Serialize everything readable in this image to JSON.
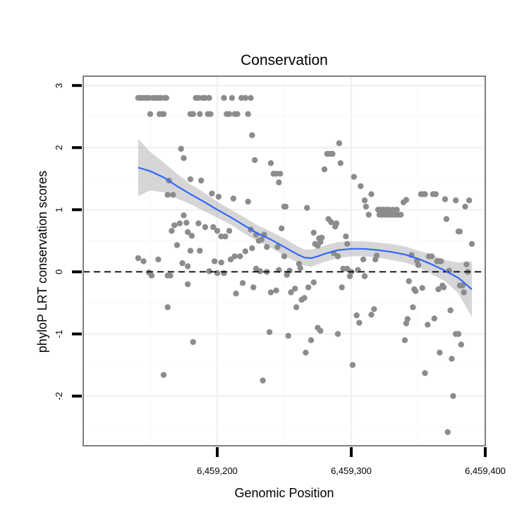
{
  "chart_data": {
    "type": "scatter",
    "title": "Conservation",
    "xlabel": "Genomic Position",
    "ylabel": "phyloP LRT conservation scores",
    "xlim": [
      6459100,
      6459400
    ],
    "ylim": [
      -2.8,
      3.15
    ],
    "x_ticks": [
      6459200,
      6459300,
      6459400
    ],
    "x_tick_labels": [
      "6,459,200",
      "6,459,300",
      "6,459,400"
    ],
    "y_ticks": [
      -2,
      -1,
      0,
      1,
      2,
      3
    ],
    "y_tick_labels": [
      "-2",
      "-1",
      "0",
      "1",
      "2",
      "3"
    ],
    "x_minor_ticks": [
      6459150,
      6459250,
      6459350
    ],
    "y_minor_ticks": [
      -2.5,
      -1.5,
      -0.5,
      0.5,
      1.5,
      2.5
    ],
    "grid": true,
    "reference_line": {
      "y": 0,
      "style": "dashed",
      "color": "#000000"
    },
    "point_color": "#8c8c8c",
    "smooth_color": "#3366ff",
    "ribbon_color": "#999999",
    "points": [
      [
        6459141,
        2.8
      ],
      [
        6459143,
        2.8
      ],
      [
        6459145,
        2.8
      ],
      [
        6459147,
        2.8
      ],
      [
        6459149,
        2.8
      ],
      [
        6459150,
        2.54
      ],
      [
        6459152,
        2.8
      ],
      [
        6459154,
        2.8
      ],
      [
        6459156,
        2.8
      ],
      [
        6459157,
        2.54
      ],
      [
        6459158,
        2.8
      ],
      [
        6459159,
        2.54
      ],
      [
        6459160,
        2.54
      ],
      [
        6459161,
        2.8
      ],
      [
        6459162,
        2.8
      ],
      [
        6459180,
        2.54
      ],
      [
        6459182,
        2.54
      ],
      [
        6459184,
        2.8
      ],
      [
        6459186,
        2.8
      ],
      [
        6459187,
        2.54
      ],
      [
        6459189,
        2.8
      ],
      [
        6459191,
        2.8
      ],
      [
        6459193,
        2.54
      ],
      [
        6459194,
        2.8
      ],
      [
        6459195,
        2.54
      ],
      [
        6459205,
        2.8
      ],
      [
        6459207,
        2.54
      ],
      [
        6459209,
        2.54
      ],
      [
        6459211,
        2.8
      ],
      [
        6459213,
        2.54
      ],
      [
        6459215,
        2.54
      ],
      [
        6459218,
        2.8
      ],
      [
        6459221,
        2.8
      ],
      [
        6459223,
        2.54
      ],
      [
        6459225,
        2.8
      ],
      [
        6459226,
        2.2
      ],
      [
        6459228,
        1.8
      ],
      [
        6459173,
        1.98
      ],
      [
        6459175,
        1.83
      ],
      [
        6459180,
        1.49
      ],
      [
        6459188,
        1.47
      ],
      [
        6459164,
        1.47
      ],
      [
        6459163,
        1.24
      ],
      [
        6459167,
        1.24
      ],
      [
        6459196,
        1.26
      ],
      [
        6459201,
        1.21
      ],
      [
        6459212,
        1.18
      ],
      [
        6459223,
        1.13
      ],
      [
        6459172,
        0.78
      ],
      [
        6459175,
        0.91
      ],
      [
        6459177,
        0.79
      ],
      [
        6459178,
        0.64
      ],
      [
        6459181,
        0.58
      ],
      [
        6459186,
        0.78
      ],
      [
        6459191,
        0.72
      ],
      [
        6459197,
        0.72
      ],
      [
        6459200,
        0.66
      ],
      [
        6459203,
        0.57
      ],
      [
        6459206,
        0.57
      ],
      [
        6459209,
        0.66
      ],
      [
        6459166,
        0.66
      ],
      [
        6459168,
        0.75
      ],
      [
        6459163,
        -0.06
      ],
      [
        6459165,
        -0.06
      ],
      [
        6459170,
        0.43
      ],
      [
        6459174,
        0.14
      ],
      [
        6459178,
        0.09
      ],
      [
        6459180,
        0.34
      ],
      [
        6459187,
        0.34
      ],
      [
        6459141,
        0.22
      ],
      [
        6459145,
        0.17
      ],
      [
        6459149,
        -0.01
      ],
      [
        6459151,
        -0.06
      ],
      [
        6459156,
        0.2
      ],
      [
        6459160,
        -1.66
      ],
      [
        6459163,
        -0.57
      ],
      [
        6459178,
        -0.2
      ],
      [
        6459182,
        -1.13
      ],
      [
        6459194,
        0.01
      ],
      [
        6459198,
        0.17
      ],
      [
        6459200,
        -0.02
      ],
      [
        6459203,
        0.15
      ],
      [
        6459205,
        -0.02
      ],
      [
        6459210,
        0.2
      ],
      [
        6459213,
        0.25
      ],
      [
        6459217,
        0.25
      ],
      [
        6459214,
        -0.35
      ],
      [
        6459219,
        -0.18
      ],
      [
        6459221,
        0.33
      ],
      [
        6459226,
        0.38
      ],
      [
        6459227,
        -0.25
      ],
      [
        6459229,
        0.05
      ],
      [
        6459225,
        0.68
      ],
      [
        6459229,
        0.6
      ],
      [
        6459231,
        0.5
      ],
      [
        6459233,
        0.52
      ],
      [
        6459235,
        0.6
      ],
      [
        6459237,
        0.4
      ],
      [
        6459232,
        0.01
      ],
      [
        6459237,
        0.0
      ],
      [
        6459240,
        -0.33
      ],
      [
        6459244,
        -0.3
      ],
      [
        6459246,
        0.03
      ],
      [
        6459234,
        -1.75
      ],
      [
        6459239,
        -0.97
      ],
      [
        6459240,
        1.75
      ],
      [
        6459242,
        1.58
      ],
      [
        6459244,
        1.58
      ],
      [
        6459246,
        1.44
      ],
      [
        6459247,
        1.58
      ],
      [
        6459250,
        1.05
      ],
      [
        6459251,
        1.05
      ],
      [
        6459245,
        0.4
      ],
      [
        6459248,
        0.7
      ],
      [
        6459250,
        0.25
      ],
      [
        6459252,
        -0.05
      ],
      [
        6459254,
        0.02
      ],
      [
        6459253,
        -1.03
      ],
      [
        6459255,
        -0.33
      ],
      [
        6459258,
        -0.27
      ],
      [
        6459259,
        -0.57
      ],
      [
        6459261,
        0.13
      ],
      [
        6459262,
        0.06
      ],
      [
        6459263,
        -0.45
      ],
      [
        6459265,
        -0.42
      ],
      [
        6459266,
        -1.3
      ],
      [
        6459268,
        -0.25
      ],
      [
        6459267,
        1.03
      ],
      [
        6459270,
        -1.1
      ],
      [
        6459272,
        -0.17
      ],
      [
        6459272,
        0.63
      ],
      [
        6459273,
        0.45
      ],
      [
        6459275,
        0.42
      ],
      [
        6459276,
        0.54
      ],
      [
        6459277,
        0.48
      ],
      [
        6459278,
        0.55
      ],
      [
        6459275,
        -0.9
      ],
      [
        6459277,
        -0.95
      ],
      [
        6459280,
        1.65
      ],
      [
        6459282,
        1.9
      ],
      [
        6459284,
        1.9
      ],
      [
        6459286,
        1.9
      ],
      [
        6459283,
        0.85
      ],
      [
        6459285,
        0.8
      ],
      [
        6459288,
        0.73
      ],
      [
        6459289,
        0.78
      ],
      [
        6459287,
        0.3
      ],
      [
        6459290,
        0.25
      ],
      [
        6459290,
        -1.0
      ],
      [
        6459291,
        2.07
      ],
      [
        6459292,
        1.75
      ],
      [
        6459293,
        -0.25
      ],
      [
        6459294,
        0.05
      ],
      [
        6459297,
        0.05
      ],
      [
        6459296,
        0.57
      ],
      [
        6459297,
        0.45
      ],
      [
        6459299,
        -0.07
      ],
      [
        6459300,
        0.0
      ],
      [
        6459301,
        -1.5
      ],
      [
        6459302,
        1.53
      ],
      [
        6459304,
        -0.7
      ],
      [
        6459305,
        0.03
      ],
      [
        6459307,
        1.38
      ],
      [
        6459306,
        -0.82
      ],
      [
        6459309,
        0.2
      ],
      [
        6459310,
        1.15
      ],
      [
        6459311,
        1.05
      ],
      [
        6459310,
        -0.07
      ],
      [
        6459313,
        0.92
      ],
      [
        6459315,
        1.25
      ],
      [
        6459315,
        -0.69
      ],
      [
        6459317,
        -0.6
      ],
      [
        6459318,
        0.2
      ],
      [
        6459319,
        0.26
      ],
      [
        6459320,
        1.0
      ],
      [
        6459322,
        1.0
      ],
      [
        6459324,
        1.0
      ],
      [
        6459326,
        1.0
      ],
      [
        6459328,
        1.0
      ],
      [
        6459321,
        0.92
      ],
      [
        6459323,
        0.92
      ],
      [
        6459325,
        0.92
      ],
      [
        6459327,
        0.92
      ],
      [
        6459329,
        0.92
      ],
      [
        6459331,
        0.92
      ],
      [
        6459333,
        0.92
      ],
      [
        6459335,
        0.92
      ],
      [
        6459337,
        0.92
      ],
      [
        6459331,
        1.0
      ],
      [
        6459334,
        1.0
      ],
      [
        6459339,
        1.12
      ],
      [
        6459341,
        1.16
      ],
      [
        6459340,
        -1.1
      ],
      [
        6459342,
        -0.76
      ],
      [
        6459341,
        -0.83
      ],
      [
        6459345,
        0.27
      ],
      [
        6459346,
        -0.57
      ],
      [
        6459347,
        -0.28
      ],
      [
        6459348,
        -0.31
      ],
      [
        6459343,
        -0.15
      ],
      [
        6459349,
        0.18
      ],
      [
        6459350,
        0.11
      ],
      [
        6459352,
        1.25
      ],
      [
        6459354,
        1.25
      ],
      [
        6459355,
        1.25
      ],
      [
        6459353,
        -0.26
      ],
      [
        6459355,
        -1.63
      ],
      [
        6459357,
        -0.85
      ],
      [
        6459358,
        0.25
      ],
      [
        6459360,
        0.25
      ],
      [
        6459361,
        1.25
      ],
      [
        6459363,
        1.25
      ],
      [
        6459362,
        -0.75
      ],
      [
        6459364,
        0.17
      ],
      [
        6459366,
        0.17
      ],
      [
        6459367,
        0.17
      ],
      [
        6459365,
        -0.28
      ],
      [
        6459366,
        -1.3
      ],
      [
        6459368,
        -0.22
      ],
      [
        6459369,
        -0.25
      ],
      [
        6459370,
        1.17
      ],
      [
        6459371,
        0.85
      ],
      [
        6459373,
        0.02
      ],
      [
        6459374,
        -0.62
      ],
      [
        6459375,
        -1.4
      ],
      [
        6459376,
        -2.0
      ],
      [
        6459372,
        -2.58
      ],
      [
        6459378,
        1.15
      ],
      [
        6459380,
        0.65
      ],
      [
        6459381,
        0.65
      ],
      [
        6459378,
        -1.0
      ],
      [
        6459380,
        -1.0
      ],
      [
        6459382,
        -1.17
      ],
      [
        6459381,
        -0.22
      ],
      [
        6459383,
        -0.22
      ],
      [
        6459384,
        -0.33
      ],
      [
        6459385,
        1.05
      ],
      [
        6459386,
        0.12
      ],
      [
        6459387,
        0.0
      ],
      [
        6459388,
        1.15
      ],
      [
        6459390,
        0.45
      ]
    ],
    "smooth": {
      "x": [
        6459141,
        6459150,
        6459160,
        6459170,
        6459180,
        6459190,
        6459200,
        6459210,
        6459220,
        6459230,
        6459240,
        6459250,
        6459260,
        6459265,
        6459270,
        6459275,
        6459280,
        6459290,
        6459300,
        6459310,
        6459320,
        6459330,
        6459340,
        6459350,
        6459360,
        6459370,
        6459380,
        6459390
      ],
      "y": [
        1.68,
        1.62,
        1.52,
        1.38,
        1.25,
        1.13,
        1.0,
        0.88,
        0.75,
        0.62,
        0.52,
        0.4,
        0.28,
        0.23,
        0.22,
        0.25,
        0.29,
        0.35,
        0.37,
        0.37,
        0.35,
        0.32,
        0.28,
        0.21,
        0.12,
        0.02,
        -0.1,
        -0.28
      ],
      "lower": [
        1.22,
        1.31,
        1.28,
        1.18,
        1.09,
        0.98,
        0.87,
        0.76,
        0.62,
        0.49,
        0.39,
        0.26,
        0.15,
        0.1,
        0.08,
        0.12,
        0.16,
        0.22,
        0.25,
        0.25,
        0.23,
        0.19,
        0.15,
        0.08,
        -0.04,
        -0.15,
        -0.35,
        -0.73
      ],
      "upper": [
        2.14,
        1.93,
        1.76,
        1.58,
        1.41,
        1.28,
        1.13,
        1.0,
        0.88,
        0.75,
        0.65,
        0.54,
        0.41,
        0.36,
        0.36,
        0.38,
        0.42,
        0.48,
        0.49,
        0.49,
        0.47,
        0.45,
        0.41,
        0.34,
        0.28,
        0.19,
        0.15,
        0.17
      ]
    }
  }
}
